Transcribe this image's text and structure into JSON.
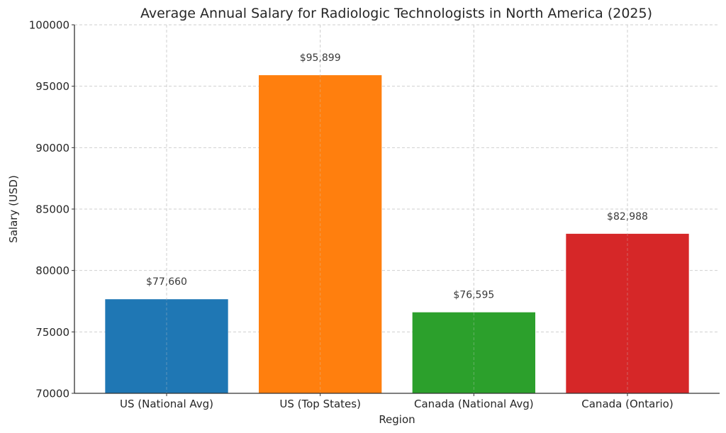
{
  "chart_data": {
    "type": "bar",
    "title": "Average Annual Salary for Radiologic Technologists in North America (2025)",
    "xlabel": "Region",
    "ylabel": "Salary (USD)",
    "categories": [
      "US (National Avg)",
      "US (Top States)",
      "Canada (National Avg)",
      "Canada (Ontario)"
    ],
    "values": [
      77660,
      95899,
      76595,
      82988
    ],
    "data_labels": [
      "$77,660",
      "$95,899",
      "$76,595",
      "$82,988"
    ],
    "colors": [
      "#1f77b4",
      "#ff7f0e",
      "#2ca02c",
      "#d62728"
    ],
    "ylim": [
      70000,
      100000
    ],
    "yticks": [
      70000,
      75000,
      80000,
      85000,
      90000,
      95000,
      100000
    ],
    "ytick_labels": [
      "70000",
      "75000",
      "80000",
      "85000",
      "90000",
      "95000",
      "100000"
    ],
    "grid": true,
    "legend": "none"
  }
}
